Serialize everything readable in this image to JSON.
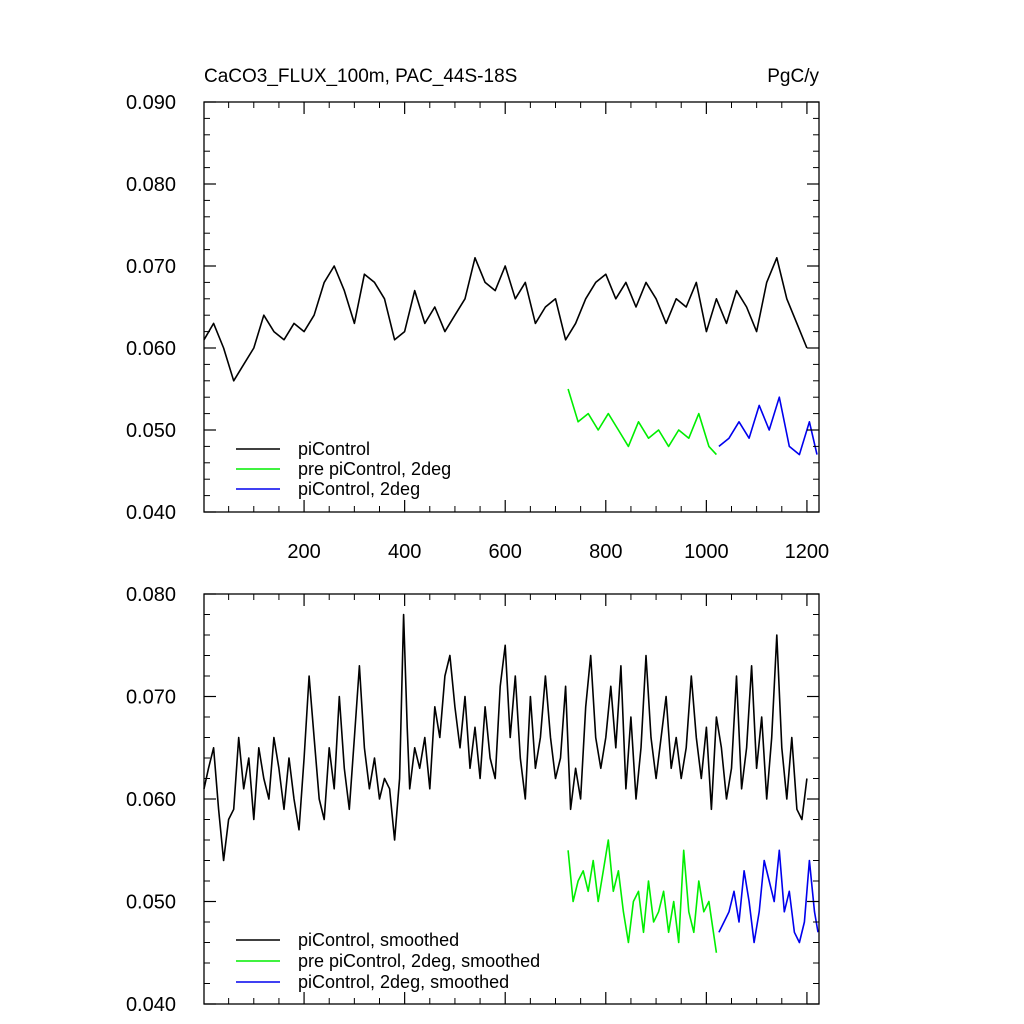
{
  "chart_data": [
    {
      "type": "line",
      "title": "CaCO3_FLUX_100m, PAC_44S-18S",
      "units": "PgC/y",
      "xlim": [
        1,
        1224
      ],
      "ylim": [
        0.04,
        0.09
      ],
      "xticks": [
        200,
        400,
        600,
        800,
        1000,
        1200
      ],
      "xtick_labels": [
        "200",
        "400",
        "600",
        "800",
        "1000",
        "1200"
      ],
      "yticks": [
        0.04,
        0.05,
        0.06,
        0.07,
        0.08,
        0.09
      ],
      "ytick_labels": [
        "0.040",
        "0.050",
        "0.060",
        "0.070",
        "0.080",
        "0.090"
      ],
      "grid": false,
      "legend_position": "bottom-left",
      "series": [
        {
          "name": "piControl",
          "color": "#000000",
          "x": [
            1,
            20,
            40,
            60,
            80,
            100,
            120,
            140,
            160,
            180,
            200,
            220,
            240,
            260,
            280,
            300,
            320,
            340,
            360,
            380,
            400,
            420,
            440,
            460,
            480,
            500,
            520,
            540,
            560,
            580,
            600,
            620,
            640,
            660,
            680,
            700,
            720,
            740,
            760,
            780,
            800,
            820,
            840,
            860,
            880,
            900,
            920,
            940,
            960,
            980,
            1000,
            1020,
            1040,
            1060,
            1080,
            1100,
            1120,
            1140,
            1160,
            1180,
            1200
          ],
          "y": [
            0.061,
            0.063,
            0.06,
            0.056,
            0.058,
            0.06,
            0.064,
            0.062,
            0.061,
            0.063,
            0.062,
            0.064,
            0.068,
            0.07,
            0.067,
            0.063,
            0.069,
            0.068,
            0.066,
            0.061,
            0.062,
            0.067,
            0.063,
            0.065,
            0.062,
            0.064,
            0.066,
            0.071,
            0.068,
            0.067,
            0.07,
            0.066,
            0.068,
            0.063,
            0.065,
            0.066,
            0.061,
            0.063,
            0.066,
            0.068,
            0.069,
            0.066,
            0.068,
            0.065,
            0.068,
            0.066,
            0.063,
            0.066,
            0.065,
            0.068,
            0.062,
            0.066,
            0.063,
            0.067,
            0.065,
            0.062,
            0.068,
            0.071,
            0.066,
            0.063,
            0.06
          ]
        },
        {
          "name": "pre piControl, 2deg",
          "color": "#00ee00",
          "x": [
            725,
            745,
            765,
            785,
            805,
            825,
            845,
            865,
            885,
            905,
            925,
            945,
            965,
            985,
            1005,
            1020
          ],
          "y": [
            0.055,
            0.051,
            0.052,
            0.05,
            0.052,
            0.05,
            0.048,
            0.051,
            0.049,
            0.05,
            0.048,
            0.05,
            0.049,
            0.052,
            0.048,
            0.047
          ]
        },
        {
          "name": "piControl, 2deg",
          "color": "#0000ee",
          "x": [
            1025,
            1045,
            1065,
            1085,
            1105,
            1125,
            1145,
            1165,
            1185,
            1205,
            1220
          ],
          "y": [
            0.048,
            0.049,
            0.051,
            0.049,
            0.053,
            0.05,
            0.054,
            0.048,
            0.047,
            0.051,
            0.047
          ]
        }
      ]
    },
    {
      "type": "line",
      "xlim": [
        1,
        1224
      ],
      "ylim": [
        0.04,
        0.08
      ],
      "xticks": [
        200,
        400,
        600,
        800,
        1000,
        1200
      ],
      "yticks": [
        0.04,
        0.05,
        0.06,
        0.07,
        0.08
      ],
      "ytick_labels": [
        "0.040",
        "0.050",
        "0.060",
        "0.070",
        "0.080"
      ],
      "grid": false,
      "legend_position": "bottom-left",
      "series": [
        {
          "name": "piControl, smoothed",
          "color": "#000000",
          "x": [
            1,
            10,
            20,
            30,
            40,
            50,
            60,
            70,
            80,
            90,
            100,
            110,
            120,
            130,
            140,
            150,
            160,
            170,
            180,
            190,
            200,
            210,
            220,
            230,
            240,
            250,
            260,
            270,
            280,
            290,
            300,
            310,
            320,
            330,
            340,
            350,
            360,
            370,
            380,
            390,
            398,
            405,
            410,
            420,
            430,
            440,
            450,
            460,
            470,
            480,
            490,
            500,
            510,
            520,
            530,
            540,
            550,
            560,
            570,
            580,
            590,
            600,
            610,
            620,
            630,
            640,
            650,
            660,
            670,
            680,
            690,
            700,
            710,
            720,
            730,
            740,
            750,
            760,
            770,
            780,
            790,
            800,
            810,
            820,
            830,
            840,
            850,
            860,
            870,
            880,
            890,
            900,
            910,
            920,
            930,
            940,
            950,
            960,
            970,
            980,
            990,
            1000,
            1010,
            1020,
            1030,
            1040,
            1050,
            1060,
            1070,
            1080,
            1090,
            1100,
            1110,
            1120,
            1130,
            1140,
            1150,
            1160,
            1170,
            1180,
            1190,
            1200
          ],
          "y": [
            0.061,
            0.063,
            0.065,
            0.059,
            0.054,
            0.058,
            0.059,
            0.066,
            0.061,
            0.064,
            0.058,
            0.065,
            0.062,
            0.06,
            0.066,
            0.063,
            0.059,
            0.064,
            0.06,
            0.057,
            0.064,
            0.072,
            0.066,
            0.06,
            0.058,
            0.065,
            0.061,
            0.07,
            0.063,
            0.059,
            0.066,
            0.073,
            0.065,
            0.061,
            0.064,
            0.06,
            0.062,
            0.061,
            0.056,
            0.062,
            0.078,
            0.067,
            0.061,
            0.065,
            0.063,
            0.066,
            0.061,
            0.069,
            0.066,
            0.072,
            0.074,
            0.069,
            0.065,
            0.07,
            0.063,
            0.067,
            0.062,
            0.069,
            0.064,
            0.062,
            0.071,
            0.075,
            0.066,
            0.072,
            0.064,
            0.06,
            0.07,
            0.063,
            0.066,
            0.072,
            0.066,
            0.062,
            0.064,
            0.071,
            0.059,
            0.063,
            0.06,
            0.069,
            0.074,
            0.066,
            0.063,
            0.066,
            0.071,
            0.065,
            0.073,
            0.061,
            0.068,
            0.06,
            0.065,
            0.074,
            0.066,
            0.062,
            0.066,
            0.07,
            0.063,
            0.066,
            0.062,
            0.065,
            0.072,
            0.066,
            0.062,
            0.067,
            0.059,
            0.068,
            0.065,
            0.06,
            0.063,
            0.072,
            0.061,
            0.065,
            0.073,
            0.063,
            0.068,
            0.06,
            0.066,
            0.076,
            0.065,
            0.06,
            0.066,
            0.059,
            0.058,
            0.062
          ]
        },
        {
          "name": "pre piControl, 2deg, smoothed",
          "color": "#00ee00",
          "x": [
            725,
            735,
            745,
            755,
            765,
            775,
            785,
            795,
            805,
            815,
            825,
            835,
            845,
            855,
            865,
            875,
            885,
            895,
            905,
            915,
            925,
            935,
            945,
            955,
            965,
            975,
            985,
            995,
            1005,
            1020
          ],
          "y": [
            0.055,
            0.05,
            0.052,
            0.053,
            0.051,
            0.054,
            0.05,
            0.053,
            0.056,
            0.051,
            0.053,
            0.049,
            0.046,
            0.05,
            0.051,
            0.047,
            0.052,
            0.048,
            0.049,
            0.051,
            0.047,
            0.05,
            0.046,
            0.055,
            0.049,
            0.047,
            0.052,
            0.049,
            0.05,
            0.045
          ]
        },
        {
          "name": "piControl, 2deg, smoothed",
          "color": "#0000ee",
          "x": [
            1025,
            1035,
            1045,
            1055,
            1065,
            1075,
            1085,
            1095,
            1105,
            1115,
            1125,
            1135,
            1145,
            1155,
            1165,
            1175,
            1185,
            1195,
            1205,
            1215,
            1222
          ],
          "y": [
            0.047,
            0.048,
            0.049,
            0.051,
            0.048,
            0.053,
            0.05,
            0.046,
            0.049,
            0.054,
            0.052,
            0.05,
            0.055,
            0.049,
            0.051,
            0.047,
            0.046,
            0.048,
            0.054,
            0.049,
            0.047
          ]
        }
      ]
    }
  ]
}
